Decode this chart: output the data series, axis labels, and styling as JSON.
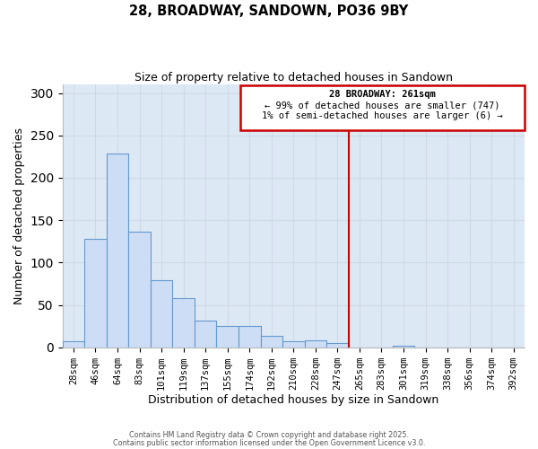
{
  "title": "28, BROADWAY, SANDOWN, PO36 9BY",
  "subtitle": "Size of property relative to detached houses in Sandown",
  "xlabel": "Distribution of detached houses by size in Sandown",
  "ylabel": "Number of detached properties",
  "bar_labels": [
    "28sqm",
    "46sqm",
    "64sqm",
    "83sqm",
    "101sqm",
    "119sqm",
    "137sqm",
    "155sqm",
    "174sqm",
    "192sqm",
    "210sqm",
    "228sqm",
    "247sqm",
    "265sqm",
    "283sqm",
    "301sqm",
    "319sqm",
    "338sqm",
    "356sqm",
    "374sqm",
    "392sqm"
  ],
  "bar_heights": [
    7,
    128,
    229,
    136,
    79,
    58,
    31,
    25,
    25,
    13,
    7,
    8,
    5,
    0,
    0,
    2,
    0,
    0,
    0,
    0,
    0
  ],
  "bar_color": "#ccddf5",
  "bar_edge_color": "#6699cc",
  "vline_color": "#cc0000",
  "vline_index": 13,
  "annotation_title": "28 BROADWAY: 261sqm",
  "annotation_line1": "← 99% of detached houses are smaller (747)",
  "annotation_line2": "1% of semi-detached houses are larger (6) →",
  "annotation_box_edgecolor": "#cc0000",
  "ylim_max": 310,
  "yticks": [
    0,
    50,
    100,
    150,
    200,
    250,
    300
  ],
  "grid_color": "#d0d8e8",
  "plot_bg_color": "#dde8f5",
  "footer1": "Contains HM Land Registry data © Crown copyright and database right 2025.",
  "footer2": "Contains public sector information licensed under the Open Government Licence v3.0."
}
